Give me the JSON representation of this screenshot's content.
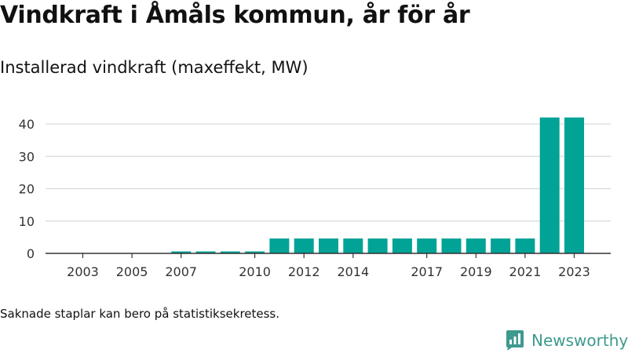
{
  "header": {
    "title": "Vindkraft i Åmåls kommun, år för år",
    "subtitle": "Installerad vindkraft (maxeffekt, MW)"
  },
  "footer": {
    "note": "Saknade staplar kan bero på statistiksekretess.",
    "brand": "Newsworthy",
    "brand_icon": "newsworthy-logo-icon"
  },
  "colors": {
    "bar": "#00a396",
    "grid": "#d9d9d9",
    "axis": "#333333",
    "brand": "#3d9a8d"
  },
  "chart_data": {
    "type": "bar",
    "title": "Vindkraft i Åmåls kommun, år för år",
    "subtitle": "Installerad vindkraft (maxeffekt, MW)",
    "categories": [
      "2003",
      "2004",
      "2005",
      "2006",
      "2007",
      "2008",
      "2009",
      "2010",
      "2011",
      "2012",
      "2013",
      "2014",
      "2015",
      "2016",
      "2017",
      "2018",
      "2019",
      "2020",
      "2021",
      "2022",
      "2023"
    ],
    "values": [
      0,
      0,
      0,
      0,
      0.6,
      0.6,
      0.6,
      0.6,
      4.6,
      4.6,
      4.6,
      4.6,
      4.6,
      4.6,
      4.6,
      4.6,
      4.6,
      4.6,
      4.6,
      42,
      42
    ],
    "x_tick_labels": [
      "2003",
      "2005",
      "2007",
      "2010",
      "2012",
      "2014",
      "2017",
      "2019",
      "2021",
      "2023"
    ],
    "y_ticks": [
      0,
      10,
      20,
      30,
      40
    ],
    "ylim": [
      0,
      42
    ],
    "xlabel": "",
    "ylabel": "",
    "grid": true,
    "legend": "none"
  }
}
